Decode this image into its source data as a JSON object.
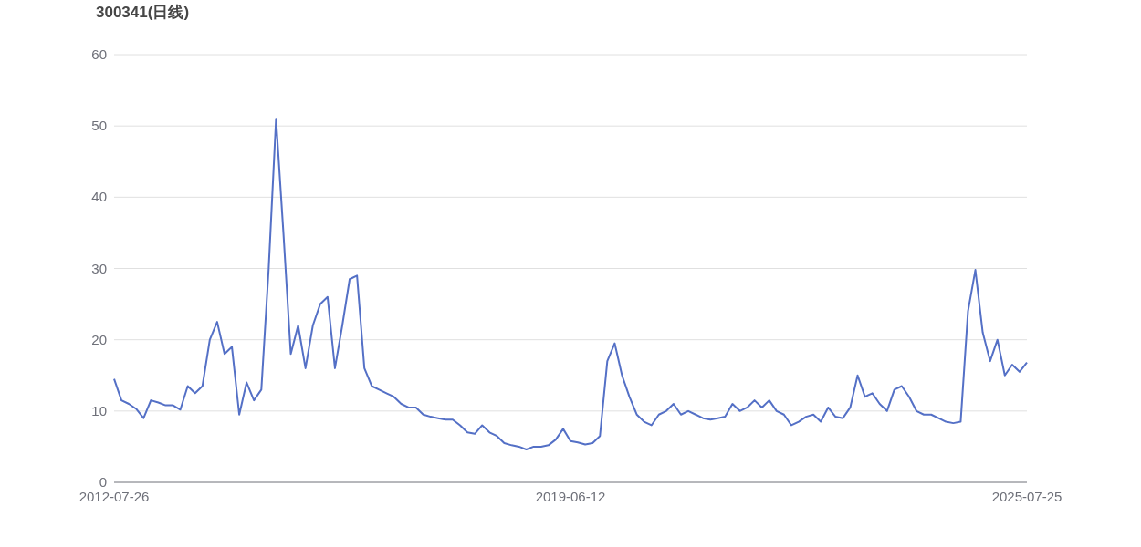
{
  "chart_data": {
    "type": "line",
    "title": "300341(日线)",
    "categories": [
      "2012-07-26",
      null,
      null,
      null,
      null,
      null,
      null,
      null,
      null,
      null,
      null,
      null,
      null,
      null,
      null,
      null,
      null,
      null,
      null,
      null,
      null,
      null,
      null,
      null,
      null,
      null,
      null,
      null,
      null,
      null,
      null,
      null,
      null,
      null,
      null,
      null,
      null,
      null,
      null,
      null,
      null,
      null,
      null,
      null,
      null,
      null,
      null,
      null,
      null,
      null,
      null,
      null,
      null,
      null,
      null,
      null,
      null,
      null,
      null,
      null,
      null,
      null,
      "2019-06-12",
      null,
      null,
      null,
      null,
      null,
      null,
      null,
      null,
      null,
      null,
      null,
      null,
      null,
      null,
      null,
      null,
      null,
      null,
      null,
      null,
      null,
      null,
      null,
      null,
      null,
      null,
      null,
      null,
      null,
      null,
      null,
      null,
      null,
      null,
      null,
      null,
      null,
      null,
      null,
      null,
      null,
      null,
      null,
      null,
      null,
      null,
      null,
      null,
      null,
      null,
      null,
      null,
      null,
      null,
      null,
      null,
      null,
      null,
      null,
      null,
      null,
      "2025-07-25"
    ],
    "values": [
      14.5,
      11.5,
      11.0,
      10.3,
      9.0,
      11.5,
      11.2,
      10.8,
      10.8,
      10.2,
      13.5,
      12.5,
      13.5,
      20.0,
      22.5,
      18.0,
      19.0,
      9.5,
      14.0,
      11.5,
      13.0,
      30.0,
      51.0,
      35.0,
      18.0,
      22.0,
      16.0,
      22.0,
      25.0,
      26.0,
      16.0,
      22.0,
      28.5,
      29.0,
      16.0,
      13.5,
      13.0,
      12.5,
      12.0,
      11.0,
      10.5,
      10.5,
      9.5,
      9.2,
      9.0,
      8.8,
      8.8,
      8.0,
      7.0,
      6.8,
      8.0,
      7.0,
      6.5,
      5.5,
      5.2,
      5.0,
      4.6,
      5.0,
      5.0,
      5.2,
      6.0,
      7.5,
      5.8,
      5.6,
      5.3,
      5.5,
      6.5,
      17.0,
      19.5,
      15.0,
      12.0,
      9.5,
      8.5,
      8.0,
      9.5,
      10.0,
      11.0,
      9.5,
      10.0,
      9.5,
      9.0,
      8.8,
      9.0,
      9.2,
      11.0,
      10.0,
      10.5,
      11.5,
      10.5,
      11.5,
      10.0,
      9.5,
      8.0,
      8.5,
      9.2,
      9.5,
      8.5,
      10.5,
      9.2,
      9.0,
      10.5,
      15.0,
      12.0,
      12.5,
      11.0,
      10.0,
      13.0,
      13.5,
      12.0,
      10.0,
      9.5,
      9.5,
      9.0,
      8.5,
      8.3,
      8.5,
      24.0,
      29.8,
      21.0,
      17.0,
      20.0,
      15.0,
      16.5,
      15.5,
      16.8
    ],
    "color": "#5470c6",
    "ylim": [
      0,
      60
    ],
    "yticks": [
      0,
      10,
      20,
      30,
      40,
      50,
      60
    ],
    "grid": "y"
  }
}
